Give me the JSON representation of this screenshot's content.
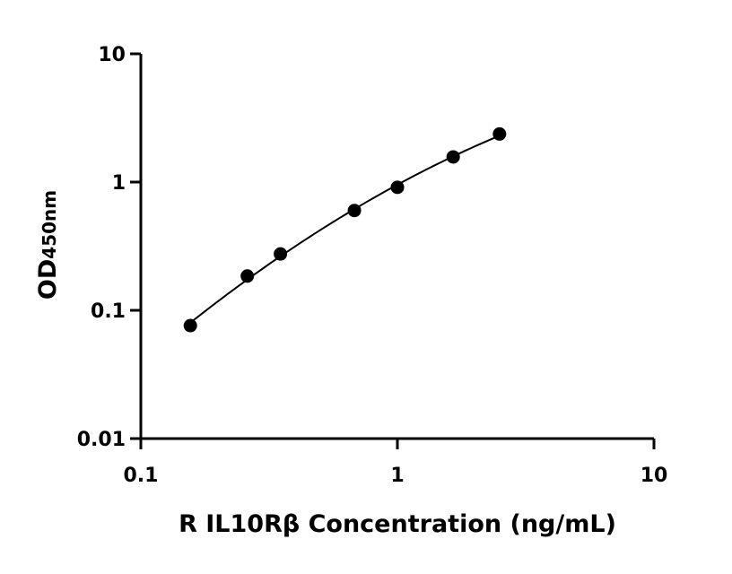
{
  "chart_data": {
    "type": "scatter",
    "xlabel": "R IL10Rβ Concentration (ng/mL)",
    "ylabel_main": "OD",
    "ylabel_sub": "450nm",
    "x_scale": "log",
    "y_scale": "log",
    "xlim": [
      0.1,
      10
    ],
    "ylim": [
      0.01,
      10
    ],
    "x_ticks": [
      0.1,
      1,
      10
    ],
    "x_tick_labels": [
      "0.1",
      "1",
      "10"
    ],
    "y_ticks": [
      0.01,
      0.1,
      1,
      10
    ],
    "y_tick_labels": [
      "0.01",
      "0.1",
      "1",
      "10"
    ],
    "grid": false,
    "legend": "none",
    "has_fit_curve": true,
    "marker_color": "#000000",
    "points": [
      {
        "x": 0.156,
        "y": 0.076
      },
      {
        "x": 0.26,
        "y": 0.185
      },
      {
        "x": 0.35,
        "y": 0.275
      },
      {
        "x": 0.68,
        "y": 0.6
      },
      {
        "x": 1.0,
        "y": 0.91
      },
      {
        "x": 1.65,
        "y": 1.57
      },
      {
        "x": 2.5,
        "y": 2.37
      }
    ]
  }
}
